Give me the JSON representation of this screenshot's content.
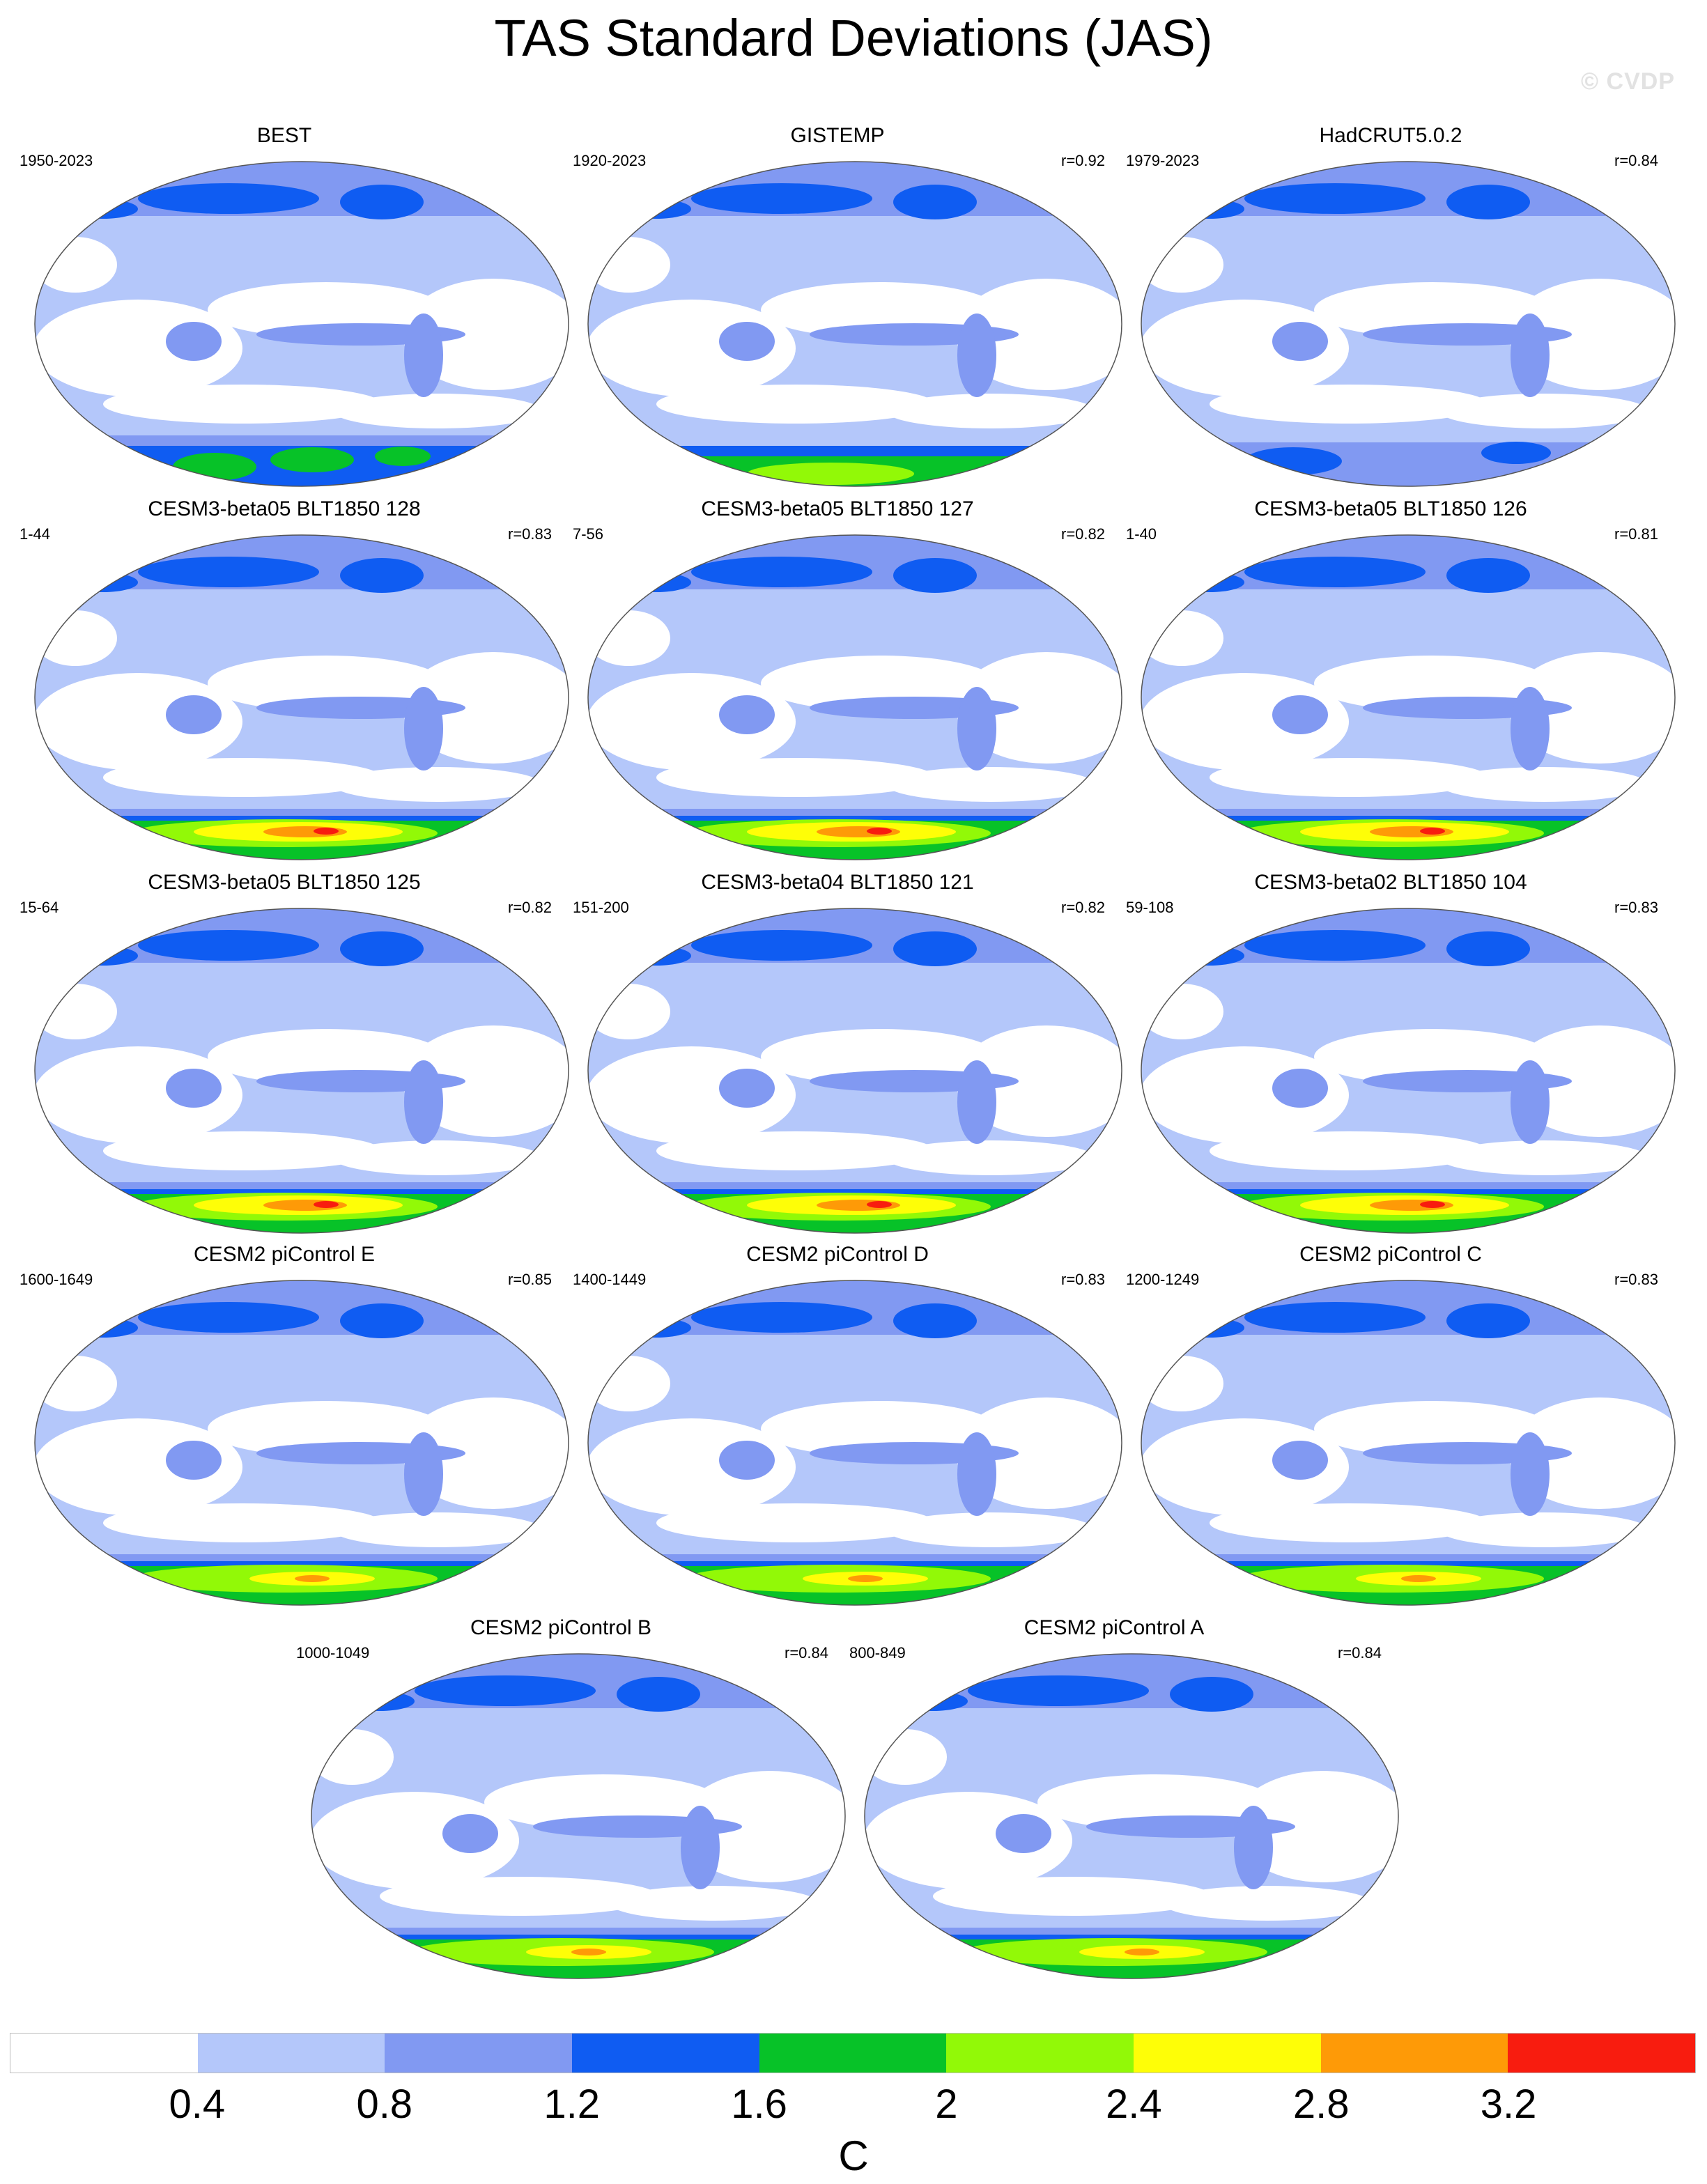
{
  "title": "TAS Standard Deviations (JAS)",
  "watermark": "© CVDP",
  "panels": [
    {
      "title": "BEST",
      "period": "1950-2023",
      "r": "",
      "style": "obs-best"
    },
    {
      "title": "GISTEMP",
      "period": "1920-2023",
      "r": "r=0.92",
      "style": "obs-gis"
    },
    {
      "title": "HadCRUT5.0.2",
      "period": "1979-2023",
      "r": "r=0.84",
      "style": "obs-had"
    },
    {
      "title": "CESM3-beta05 BLT1850 128",
      "period": "1-44",
      "r": "r=0.83",
      "style": "model"
    },
    {
      "title": "CESM3-beta05 BLT1850 127",
      "period": "7-56",
      "r": "r=0.82",
      "style": "model"
    },
    {
      "title": "CESM3-beta05 BLT1850 126",
      "period": "1-40",
      "r": "r=0.81",
      "style": "model"
    },
    {
      "title": "CESM3-beta05 BLT1850 125",
      "period": "15-64",
      "r": "r=0.82",
      "style": "model"
    },
    {
      "title": "CESM3-beta04 BLT1850 121",
      "period": "151-200",
      "r": "r=0.82",
      "style": "model"
    },
    {
      "title": "CESM3-beta02 BLT1850 104",
      "period": "59-108",
      "r": "r=0.83",
      "style": "model"
    },
    {
      "title": "CESM2 piControl E",
      "period": "1600-1649",
      "r": "r=0.85",
      "style": "cesm2"
    },
    {
      "title": "CESM2 piControl D",
      "period": "1400-1449",
      "r": "r=0.83",
      "style": "cesm2"
    },
    {
      "title": "CESM2 piControl C",
      "period": "1200-1249",
      "r": "r=0.83",
      "style": "cesm2"
    },
    {
      "title": "CESM2 piControl B",
      "period": "1000-1049",
      "r": "r=0.84",
      "style": "cesm2"
    },
    {
      "title": "CESM2 piControl A",
      "period": "800-849",
      "r": "r=0.84",
      "style": "cesm2"
    }
  ],
  "colorbar": {
    "colors": [
      "#ffffff",
      "#b4c7fa",
      "#8199f2",
      "#0f5cf2",
      "#07c228",
      "#92f907",
      "#fefe07",
      "#fe9a07",
      "#f81c0f"
    ],
    "ticks": [
      "0.4",
      "0.8",
      "1.2",
      "1.6",
      "2",
      "2.4",
      "2.8",
      "3.2"
    ],
    "units": "C"
  }
}
